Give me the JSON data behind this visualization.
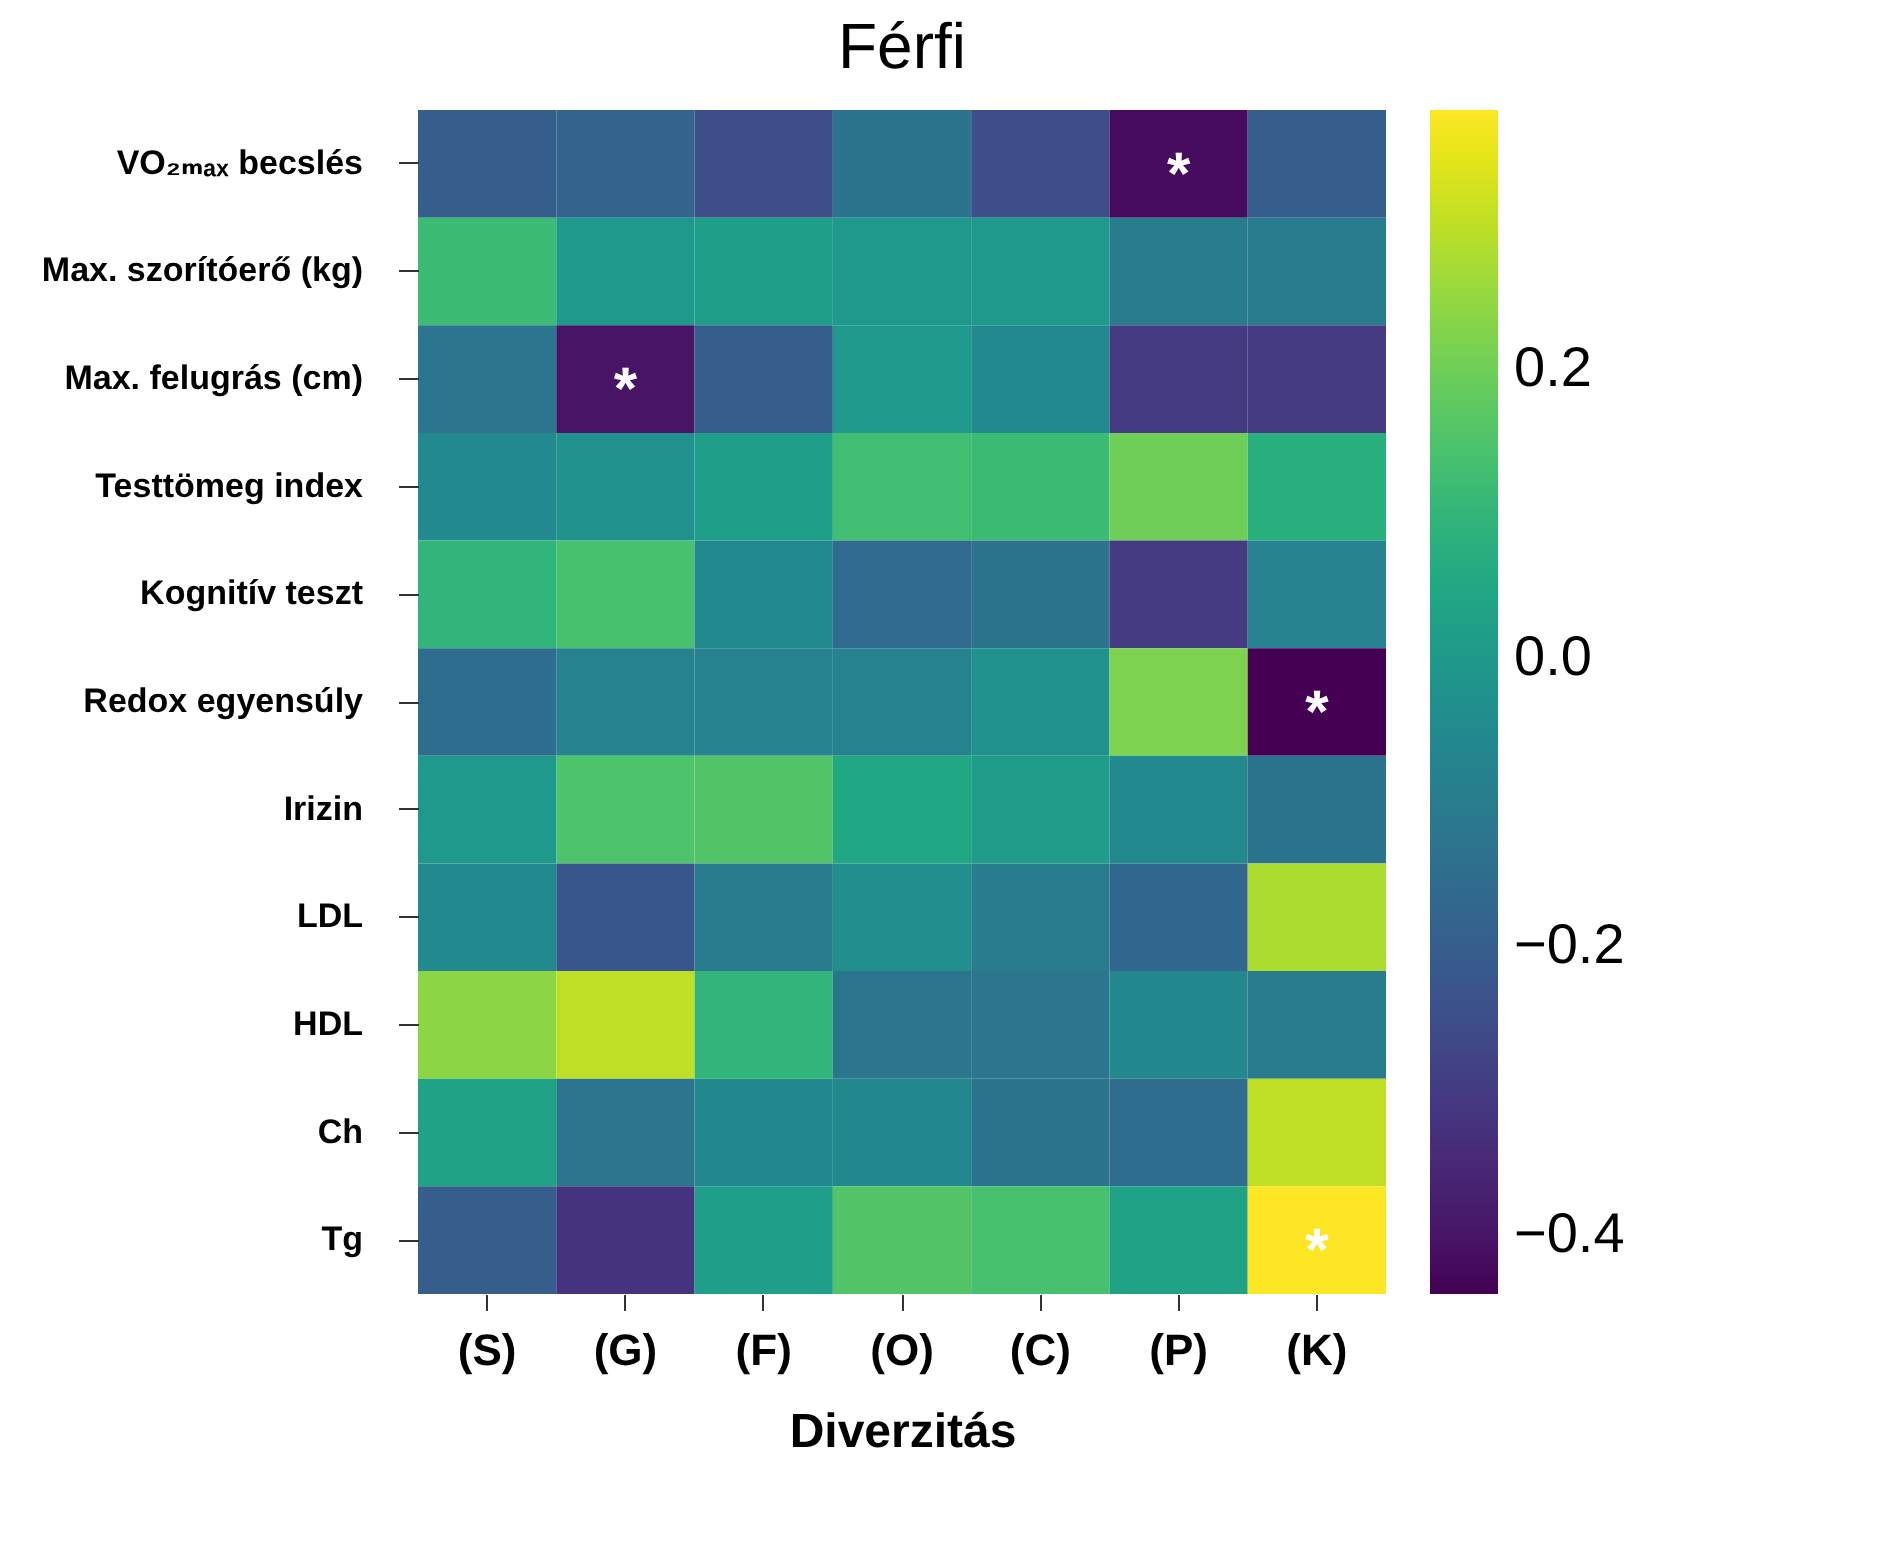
{
  "chart_data": {
    "type": "heatmap",
    "title": "Férfi",
    "xlabel": "Diverzitás",
    "categories": [
      "(S)",
      "(G)",
      "(F)",
      "(O)",
      "(C)",
      "(P)",
      "(K)"
    ],
    "y_categories": [
      "VO₂ₘₐₓ becslés",
      "Max. szorítóerő (kg)",
      "Max. felugrás (cm)",
      "Testtömeg index",
      "Kognitív teszt",
      "Redox egyensúly",
      "Irizin",
      "LDL",
      "HDL",
      "Ch",
      "Tg"
    ],
    "cells": [
      [
        -0.2,
        -0.18,
        -0.25,
        -0.13,
        -0.25,
        -0.42,
        -0.2
      ],
      [
        0.12,
        0.0,
        0.02,
        0.0,
        0.0,
        -0.1,
        -0.1
      ],
      [
        -0.12,
        -0.4,
        -0.2,
        0.0,
        -0.05,
        -0.3,
        -0.3
      ],
      [
        -0.05,
        -0.03,
        0.02,
        0.13,
        0.12,
        0.2,
        0.08
      ],
      [
        0.1,
        0.14,
        -0.05,
        -0.16,
        -0.13,
        -0.3,
        -0.08
      ],
      [
        -0.15,
        -0.08,
        -0.08,
        -0.08,
        -0.03,
        0.22,
        -0.44
      ],
      [
        0.0,
        0.15,
        0.16,
        0.05,
        0.01,
        -0.05,
        -0.13
      ],
      [
        -0.05,
        -0.22,
        -0.1,
        -0.04,
        -0.1,
        -0.17,
        0.28
      ],
      [
        0.24,
        0.3,
        0.1,
        -0.12,
        -0.12,
        -0.06,
        -0.1
      ],
      [
        0.03,
        -0.12,
        -0.06,
        -0.06,
        -0.13,
        -0.15,
        0.3
      ],
      [
        -0.2,
        -0.32,
        0.02,
        0.16,
        0.14,
        0.03,
        0.38
      ]
    ],
    "cell_labels": [
      [
        null,
        null,
        null,
        null,
        null,
        "*",
        null
      ],
      [
        null,
        null,
        null,
        null,
        null,
        null,
        null
      ],
      [
        null,
        "*",
        null,
        null,
        null,
        null,
        null
      ],
      [
        null,
        null,
        null,
        null,
        null,
        null,
        null
      ],
      [
        null,
        null,
        null,
        null,
        null,
        null,
        null
      ],
      [
        null,
        null,
        null,
        null,
        null,
        null,
        "*"
      ],
      [
        null,
        null,
        null,
        null,
        null,
        null,
        null
      ],
      [
        null,
        null,
        null,
        null,
        null,
        null,
        null
      ],
      [
        null,
        null,
        null,
        null,
        null,
        null,
        null
      ],
      [
        null,
        null,
        null,
        null,
        null,
        null,
        null
      ],
      [
        null,
        null,
        null,
        null,
        null,
        null,
        "*"
      ]
    ],
    "clim": [
      -0.44,
      0.38
    ],
    "cticks": [
      {
        "value": 0.2,
        "label": "0.2"
      },
      {
        "value": 0.0,
        "label": "0.0"
      },
      {
        "value": -0.2,
        "label": "−0.2"
      },
      {
        "value": -0.4,
        "label": "−0.4"
      }
    ]
  }
}
